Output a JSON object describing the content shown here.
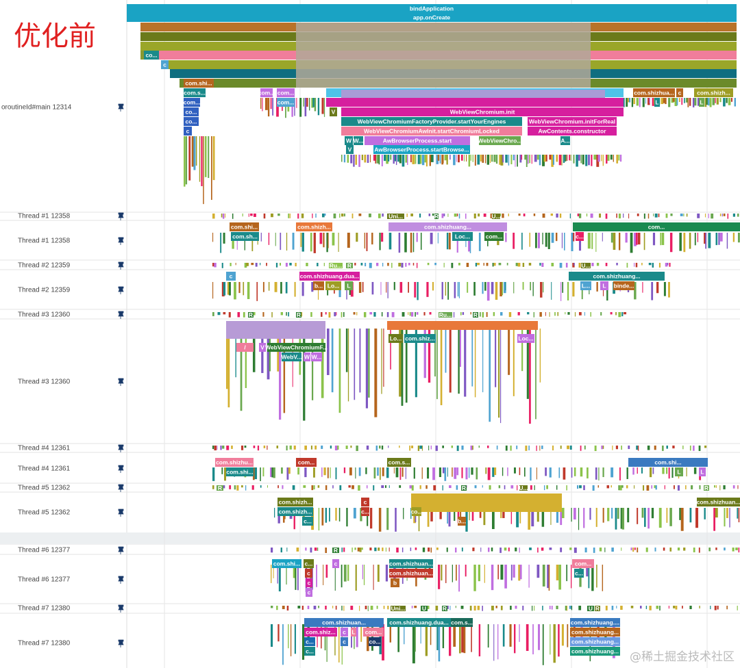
{
  "header": {
    "title": "优化前",
    "watermark": "@稀土掘金技术社区"
  },
  "tracks": [
    {
      "label": "oroutineId#main 12314"
    },
    {
      "label": "Thread #1 12358"
    },
    {
      "label": "Thread #1 12358"
    },
    {
      "label": "Thread #2 12359"
    },
    {
      "label": "Thread #2 12359"
    },
    {
      "label": "Thread #3 12360"
    },
    {
      "label": "Thread #3 12360"
    },
    {
      "label": "Thread #4 12361"
    },
    {
      "label": "Thread #4 12361"
    },
    {
      "label": "Thread #5 12362"
    },
    {
      "label": "Thread #5 12362"
    },
    {
      "label": "Thread #6 12377"
    },
    {
      "label": "Thread #6 12377"
    },
    {
      "label": "Thread #7 12380"
    },
    {
      "label": "Thread #7 12380"
    }
  ],
  "slices": [
    "bindApplication",
    "app.onCreate",
    "co...",
    "c",
    "com.shi...",
    "com.s...",
    "com...",
    "co...",
    "co...",
    "c",
    "com...",
    "com...",
    "com...",
    "com.shizhua...",
    "c",
    "com.shizh...",
    "V",
    "WebViewChromium.init",
    "WebViewChromiumFactoryProvider.startYourEngines",
    "WebViewChromium.initForReal",
    "WebViewChromiumAwInit.startChromiumLocked",
    "AwContents.constructor",
    "W",
    "W...",
    "AwBrowserProcess.start",
    "WebViewChro...",
    "A...",
    "V",
    "AwBrowserProcess.startBrowse...",
    "L",
    "L",
    "Uni...",
    "R",
    "U...",
    "U...",
    "com.shi...",
    "com.sh...",
    "com.shizh...",
    "com.shizhuang...",
    "Loc...",
    "com...",
    "com...",
    "c...",
    "Ru...",
    "R",
    "c",
    "com.shizhuang.dua...",
    "b...",
    "Lo...",
    "L",
    "com.shizhuang...",
    "L...",
    "L",
    "binde...",
    "R",
    "R",
    "Ru...",
    "R",
    "/",
    "V",
    "WebViewChromiumF...",
    "WebV...",
    "W",
    "W...",
    "Lo...",
    "com.shiz...",
    "Loc...",
    "com.shizhu...",
    "com.shi...",
    "com...",
    "com.s...",
    "com.shi...",
    "L",
    "L",
    "R",
    "R",
    "U...",
    "R",
    "com.shizh...",
    "com.shizh...",
    "c...",
    "c",
    "c...",
    "co...",
    "b...",
    "com.shizhuan...",
    "R",
    "com.shi...",
    "c...",
    "c",
    "c",
    "c",
    "c",
    "com.shizhuan...",
    "com.shizhuan...",
    "b",
    "com...",
    "c...",
    "Uni...",
    "U",
    "R",
    "U",
    "R",
    "com.shizhuan...",
    "com.shiz...",
    "c",
    "L",
    "com...",
    "c...",
    "c",
    "co...",
    "c...",
    "com.shizhuang.dua...",
    "com.s...",
    "com.shizhuang....",
    "com.shizhuang...",
    "com.shizhuang...",
    "com.shizhuang..."
  ]
}
